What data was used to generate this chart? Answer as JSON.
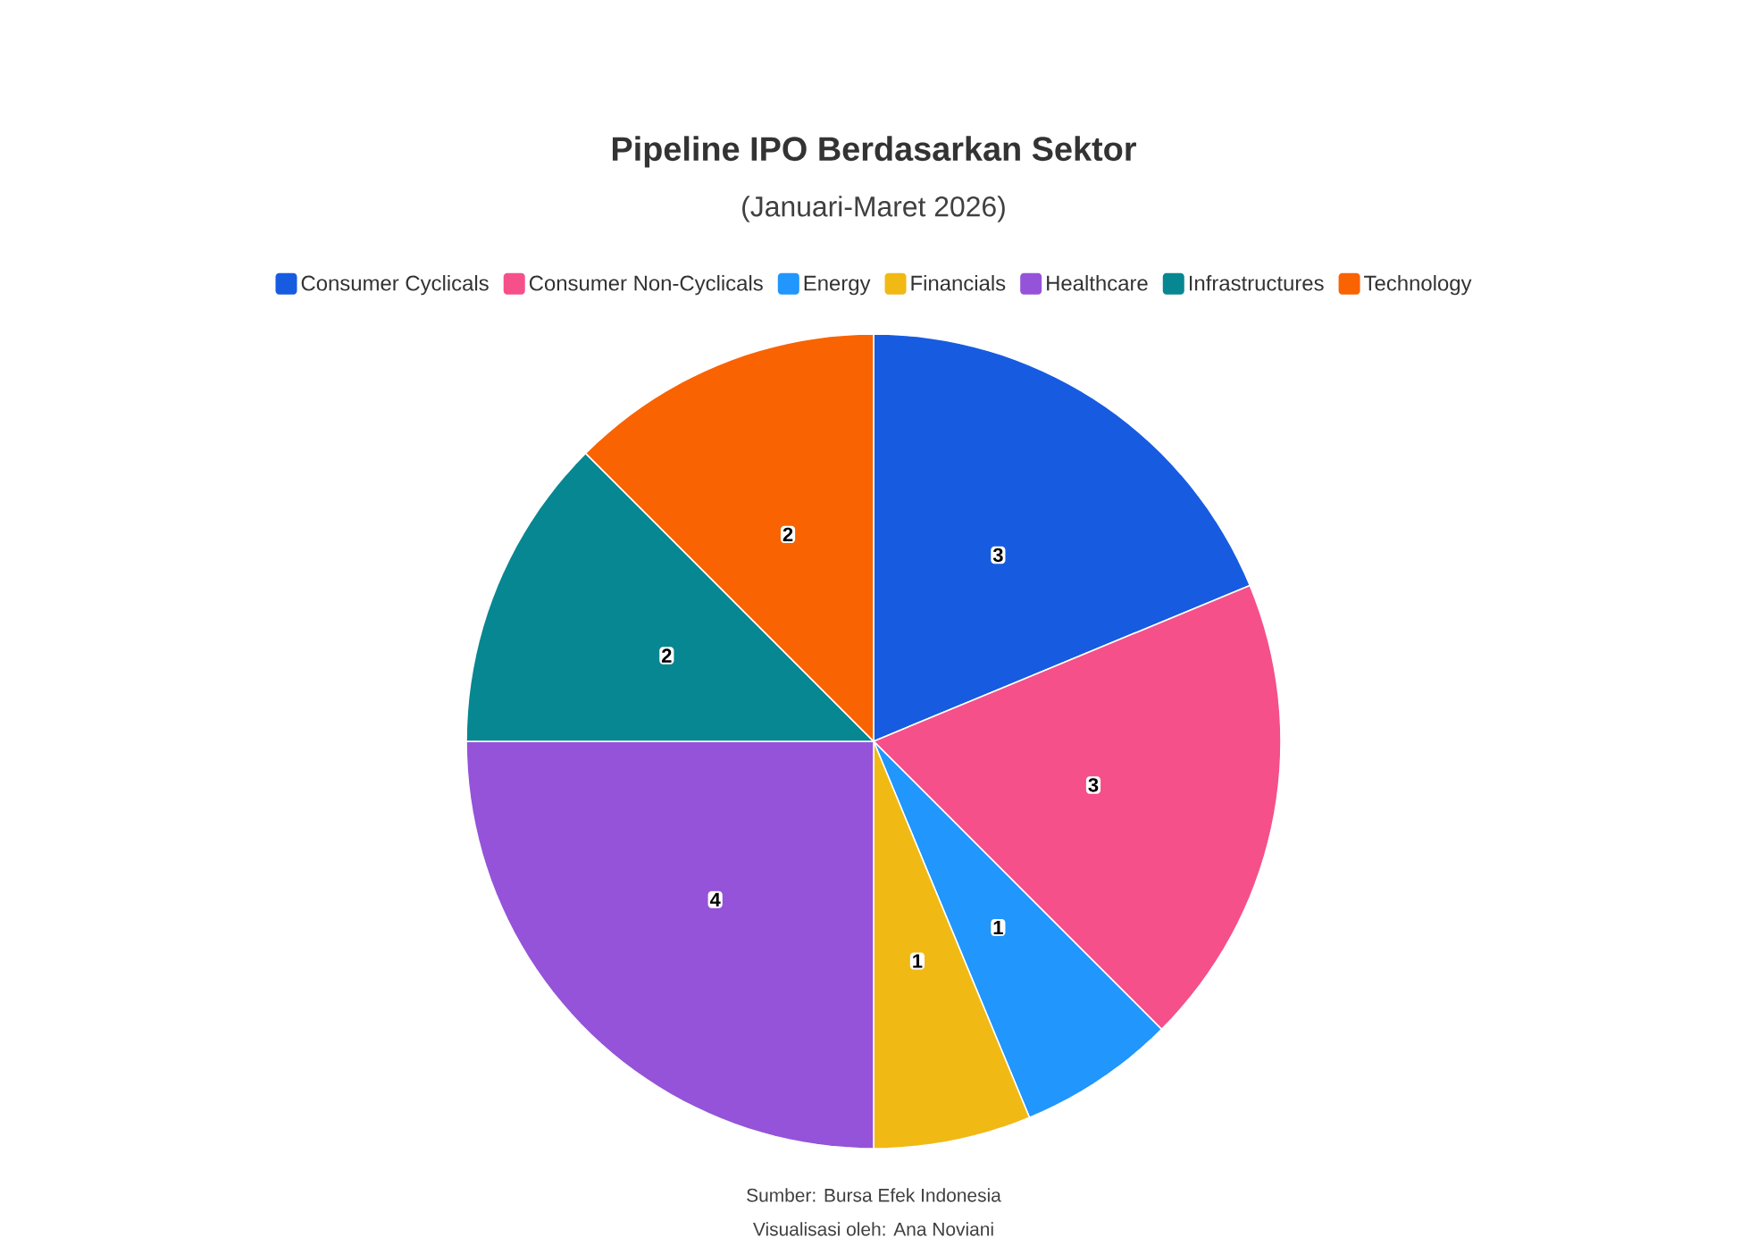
{
  "chart_data": {
    "type": "pie",
    "title": "Pipeline IPO Berdasarkan Sektor",
    "subtitle": "(Januari-Maret 2026)",
    "categories": [
      "Consumer Cyclicals",
      "Consumer Non-Cyclicals",
      "Energy",
      "Financials",
      "Healthcare",
      "Infrastructures",
      "Technology"
    ],
    "values": [
      3,
      3,
      1,
      1,
      4,
      2,
      2
    ],
    "colors": [
      "#175ce0",
      "#f5508a",
      "#2196fc",
      "#f0b914",
      "#9553d9",
      "#078791",
      "#f96302"
    ],
    "data_labels": true,
    "legend": "top",
    "annotations": [
      "Sumber: Bursa Efek Indonesia",
      "Visualisasi oleh: Ana Noviani"
    ]
  }
}
